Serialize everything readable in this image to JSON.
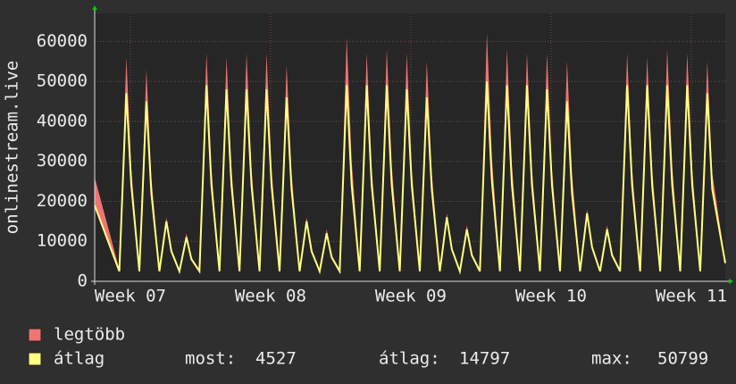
{
  "chart_data": {
    "type": "line",
    "y_label": "onlinestream.live",
    "x": [
      -1.78,
      -0.55,
      -0.2,
      0.05,
      0.45,
      0.8,
      1.05,
      1.45,
      1.8,
      2.05,
      2.45,
      2.8,
      3.05,
      3.45,
      3.8,
      4.05,
      4.45,
      4.8,
      5.05,
      5.45,
      5.8,
      6.05,
      6.45,
      6.8,
      7.05,
      7.45,
      7.8,
      8.05,
      8.45,
      8.8,
      9.05,
      9.45,
      9.8,
      10.05,
      10.45,
      10.8,
      11.05,
      11.45,
      11.8,
      12.05,
      12.45,
      12.8,
      13.05,
      13.45,
      13.8,
      14.05,
      14.45,
      14.8,
      15.05,
      15.45,
      15.8,
      16.05,
      16.45,
      16.8,
      17.05,
      17.45,
      17.8,
      18.05,
      18.45,
      18.8,
      19.05,
      19.45,
      19.8,
      20.05,
      20.45,
      20.8,
      21.05,
      21.45,
      21.8,
      22.05,
      22.45,
      22.8,
      23.05,
      23.45,
      23.8,
      24.05,
      24.45,
      24.8,
      25.05,
      25.45,
      25.8,
      26.05,
      26.45,
      26.8,
      27.05,
      27.45,
      27.8,
      28.05,
      28.45,
      28.8,
      29.05,
      29.7
    ],
    "series": [
      {
        "name": "legtöbb",
        "color": "#f07474",
        "values": [
          26000,
          3000,
          56000,
          28000,
          3000,
          53000,
          26000,
          3000,
          16000,
          8000,
          3000,
          12000,
          6000,
          3000,
          57000,
          28000,
          3000,
          56000,
          28000,
          3000,
          57000,
          28000,
          3000,
          57000,
          28000,
          3000,
          54000,
          27000,
          3000,
          16000,
          8000,
          3000,
          13000,
          6500,
          3000,
          61000,
          30000,
          3000,
          57000,
          28000,
          3000,
          58000,
          29000,
          3000,
          57000,
          28000,
          3000,
          55000,
          27000,
          3000,
          17000,
          8500,
          3000,
          14000,
          7000,
          3000,
          62000,
          31000,
          3000,
          58000,
          29000,
          3000,
          57000,
          28000,
          3000,
          57000,
          28000,
          3000,
          55000,
          27000,
          3000,
          18000,
          9000,
          3000,
          14000,
          7000,
          3000,
          57000,
          28000,
          3000,
          56000,
          28000,
          3000,
          58000,
          29000,
          3000,
          57000,
          28000,
          3000,
          55000,
          27000,
          5000
        ]
      },
      {
        "name": "átlag",
        "color": "#ffff80",
        "values": [
          19000,
          2500,
          47000,
          24000,
          2500,
          45000,
          22000,
          2500,
          15000,
          7500,
          2500,
          11000,
          5500,
          2500,
          49000,
          24000,
          2500,
          48000,
          24000,
          2500,
          48000,
          24000,
          2500,
          48000,
          24000,
          2500,
          46000,
          23000,
          2500,
          15000,
          7500,
          2500,
          12000,
          6000,
          2500,
          49000,
          24000,
          2500,
          49000,
          24000,
          2500,
          49000,
          24000,
          2500,
          48000,
          24000,
          2500,
          46000,
          23000,
          2500,
          16000,
          8000,
          2500,
          13000,
          6500,
          2500,
          50000,
          25000,
          2500,
          49000,
          24000,
          2500,
          49000,
          24000,
          2500,
          48000,
          24000,
          2500,
          45000,
          22000,
          2500,
          17000,
          8500,
          2500,
          13000,
          6500,
          2500,
          49000,
          24000,
          2500,
          49000,
          24000,
          2500,
          49000,
          24000,
          2500,
          49000,
          24000,
          2500,
          47000,
          23000,
          4527
        ]
      }
    ],
    "xlim": [
      -1.78,
      29.7
    ],
    "xticks": [
      {
        "value": 0,
        "label": "Week 07"
      },
      {
        "value": 7,
        "label": "Week 08"
      },
      {
        "value": 14,
        "label": "Week 09"
      },
      {
        "value": 21,
        "label": "Week 10"
      },
      {
        "value": 28,
        "label": "Week 11"
      }
    ],
    "ylim": [
      0,
      67000
    ],
    "yticks": [
      0,
      10000,
      20000,
      30000,
      40000,
      50000,
      60000
    ],
    "grid": true,
    "stats": [
      {
        "label": "most:",
        "value": 4527
      },
      {
        "label": "átlag:",
        "value": 14797
      },
      {
        "label": "max:",
        "value": 50799
      }
    ]
  }
}
